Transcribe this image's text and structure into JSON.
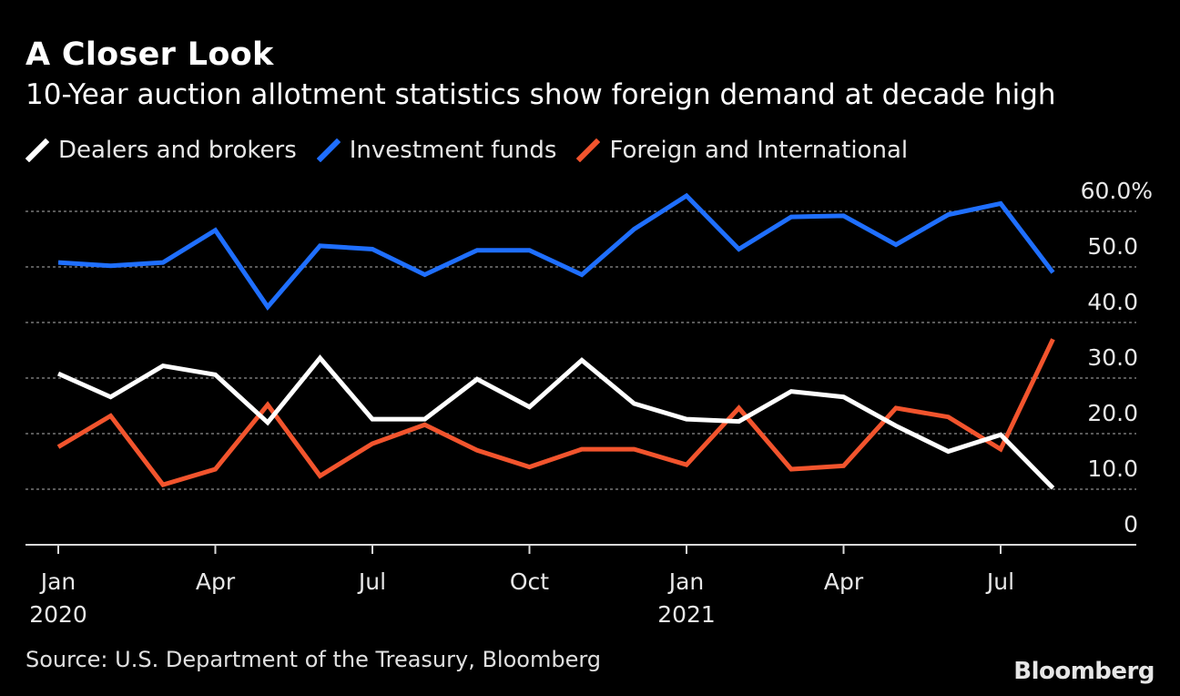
{
  "header": {
    "title": "A Closer Look",
    "subtitle": "10-Year auction allotment statistics show foreign demand at decade high"
  },
  "footer": {
    "source": "Source: U.S. Department of the Treasury, Bloomberg",
    "brand": "Bloomberg"
  },
  "chart_data": {
    "type": "line",
    "x": [
      "2020-01",
      "2020-02",
      "2020-03",
      "2020-04",
      "2020-05",
      "2020-06",
      "2020-07",
      "2020-08",
      "2020-09",
      "2020-10",
      "2020-11",
      "2020-12",
      "2021-01",
      "2021-02",
      "2021-03",
      "2021-04",
      "2021-05",
      "2021-06",
      "2021-07",
      "2021-08"
    ],
    "series": [
      {
        "name": "Dealers and brokers",
        "color": "#ffffff",
        "values": [
          30.8,
          26.6,
          32.2,
          30.6,
          22.0,
          33.6,
          22.6,
          22.6,
          29.8,
          24.8,
          33.2,
          25.4,
          22.6,
          22.2,
          27.6,
          26.6,
          21.4,
          16.8,
          19.8,
          10.2
        ]
      },
      {
        "name": "Investment funds",
        "color": "#1f6fff",
        "values": [
          50.8,
          50.2,
          50.8,
          56.6,
          42.8,
          53.8,
          53.2,
          48.6,
          53.0,
          53.0,
          48.6,
          56.8,
          62.8,
          53.2,
          59.0,
          59.2,
          54.0,
          59.4,
          61.4,
          49.0
        ]
      },
      {
        "name": "Foreign and International",
        "color": "#f2542d",
        "values": [
          17.6,
          23.2,
          10.8,
          13.6,
          25.2,
          12.4,
          18.2,
          21.6,
          17.0,
          14.0,
          17.2,
          17.2,
          14.4,
          24.6,
          13.6,
          14.2,
          24.6,
          23.0,
          17.2,
          37.0
        ]
      }
    ],
    "ylim": [
      0,
      60
    ],
    "yticks": [
      0,
      10,
      20,
      30,
      40,
      50,
      60
    ],
    "ytick_labels": [
      "0",
      "10.0",
      "20.0",
      "30.0",
      "40.0",
      "50.0",
      "60.0%"
    ],
    "xticks": [
      {
        "at": "2020-01",
        "label": "Jan",
        "year": "2020"
      },
      {
        "at": "2020-04",
        "label": "Apr",
        "year": ""
      },
      {
        "at": "2020-07",
        "label": "Jul",
        "year": ""
      },
      {
        "at": "2020-10",
        "label": "Oct",
        "year": ""
      },
      {
        "at": "2021-01",
        "label": "Jan",
        "year": "2021"
      },
      {
        "at": "2021-04",
        "label": "Apr",
        "year": ""
      },
      {
        "at": "2021-07",
        "label": "Jul",
        "year": ""
      }
    ],
    "grid": true,
    "legend_position": "top-left"
  }
}
